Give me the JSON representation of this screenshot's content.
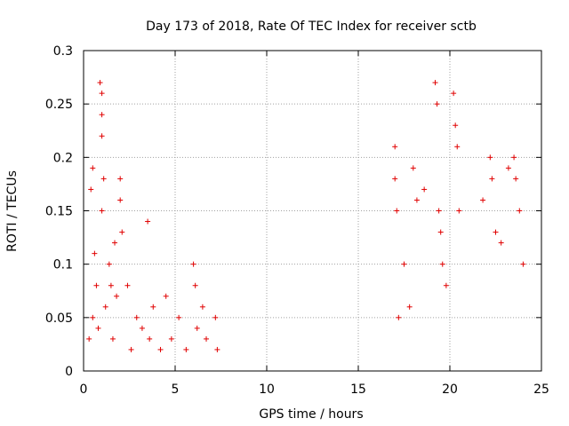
{
  "chart_data": {
    "type": "scatter",
    "title": "Day 173 of 2018, Rate Of TEC Index for receiver sctb",
    "xlabel": "GPS time / hours",
    "ylabel": "ROTI / TECUs",
    "xlim": [
      0,
      25
    ],
    "ylim": [
      0,
      0.3
    ],
    "xticks": [
      0,
      5,
      10,
      15,
      20,
      25
    ],
    "yticks": [
      0,
      0.05,
      0.1,
      0.15,
      0.2,
      0.25,
      0.3
    ],
    "xtick_labels": [
      "0",
      "5",
      "10",
      "15",
      "20",
      "25"
    ],
    "ytick_labels": [
      "0",
      "0.05",
      "0.1",
      "0.15",
      "0.2",
      "0.25",
      "0.3"
    ],
    "grid": true,
    "marker": "+",
    "series": [
      {
        "name": "ROTI",
        "color": "#e00000",
        "clusters_description": "dense point clouds; representative points listed below",
        "x": [
          0.3,
          0.4,
          0.5,
          0.5,
          0.6,
          0.7,
          0.8,
          0.9,
          1.0,
          1.0,
          1.0,
          1.0,
          1.1,
          1.2,
          1.4,
          1.5,
          1.6,
          1.7,
          1.8,
          2.0,
          2.0,
          2.1,
          2.4,
          2.6,
          2.9,
          3.2,
          3.5,
          3.6,
          3.8,
          4.2,
          4.5,
          4.8,
          5.2,
          5.6,
          6.0,
          6.1,
          6.2,
          6.5,
          6.7,
          7.2,
          7.3,
          17.0,
          17.0,
          17.1,
          17.2,
          17.5,
          17.8,
          18.0,
          18.2,
          18.6,
          19.2,
          19.3,
          19.4,
          19.5,
          19.6,
          19.8,
          20.2,
          20.3,
          20.4,
          20.5,
          21.8,
          22.2,
          22.3,
          22.5,
          22.8,
          23.2,
          23.5,
          23.6,
          23.8,
          24.0
        ],
        "y": [
          0.03,
          0.17,
          0.19,
          0.05,
          0.11,
          0.08,
          0.04,
          0.27,
          0.26,
          0.24,
          0.22,
          0.15,
          0.18,
          0.06,
          0.1,
          0.08,
          0.03,
          0.12,
          0.07,
          0.18,
          0.16,
          0.13,
          0.08,
          0.02,
          0.05,
          0.04,
          0.14,
          0.03,
          0.06,
          0.02,
          0.07,
          0.03,
          0.05,
          0.02,
          0.1,
          0.08,
          0.04,
          0.06,
          0.03,
          0.05,
          0.02,
          0.21,
          0.18,
          0.15,
          0.05,
          0.1,
          0.06,
          0.19,
          0.16,
          0.17,
          0.27,
          0.25,
          0.15,
          0.13,
          0.1,
          0.08,
          0.26,
          0.23,
          0.21,
          0.15,
          0.16,
          0.2,
          0.18,
          0.13,
          0.12,
          0.19,
          0.2,
          0.18,
          0.15,
          0.1
        ]
      }
    ]
  }
}
